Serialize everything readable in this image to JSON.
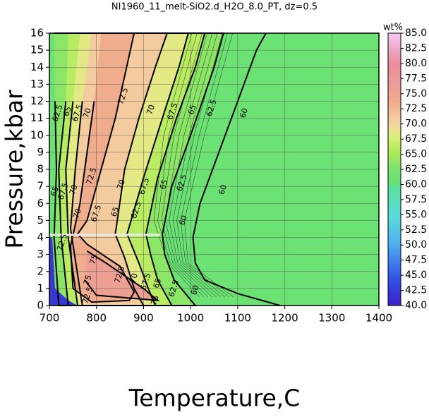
{
  "chart_data": {
    "type": "contour",
    "title": "NI1960_11_melt-SiO2.d_H2O_8.0_PT, dz=0.5",
    "x_label": "Temperature,C",
    "y_label": "Pressure,kbar",
    "xlim": [
      700,
      1400
    ],
    "ylim": [
      0,
      16
    ],
    "xticks": [
      700,
      800,
      900,
      1000,
      1100,
      1200,
      1300,
      1400
    ],
    "yticks": [
      0,
      1,
      2,
      3,
      4,
      5,
      6,
      7,
      8,
      9,
      10,
      11,
      12,
      13,
      14,
      15,
      16
    ],
    "grid": true,
    "colorbar": {
      "label": "wt%",
      "lim": [
        40,
        85
      ],
      "ticks": [
        {
          "value": 40,
          "label": "40.0"
        },
        42.5,
        {
          "value": 45,
          "label": "45.0"
        },
        47.5,
        {
          "value": 50,
          "label": "50.0"
        },
        52.5,
        {
          "value": 55,
          "label": "55.0"
        },
        57.5,
        {
          "value": 60,
          "label": "60.0"
        },
        62.5,
        {
          "value": 65,
          "label": "65.0"
        },
        67.5,
        {
          "value": 70,
          "label": "70.0"
        },
        72.5,
        {
          "value": 75,
          "label": "75.0"
        },
        77.5,
        {
          "value": 80,
          "label": "80.0"
        },
        82.5,
        {
          "value": 85,
          "label": "85.0"
        }
      ]
    },
    "contour_levels": [
      60,
      62.5,
      65,
      67.5,
      70,
      72.5,
      75
    ],
    "contour_labels": [
      62.5,
      65,
      67.5,
      70,
      72.5,
      70,
      67.5,
      65,
      62.5,
      60,
      65,
      67.5,
      70,
      72.5,
      70,
      67.5,
      65,
      62.5,
      60,
      70,
      67.5,
      65,
      62.5,
      60,
      72.5,
      75,
      75,
      72.5,
      70,
      67.5,
      65,
      62.5,
      60,
      72.5,
      75
    ]
  }
}
